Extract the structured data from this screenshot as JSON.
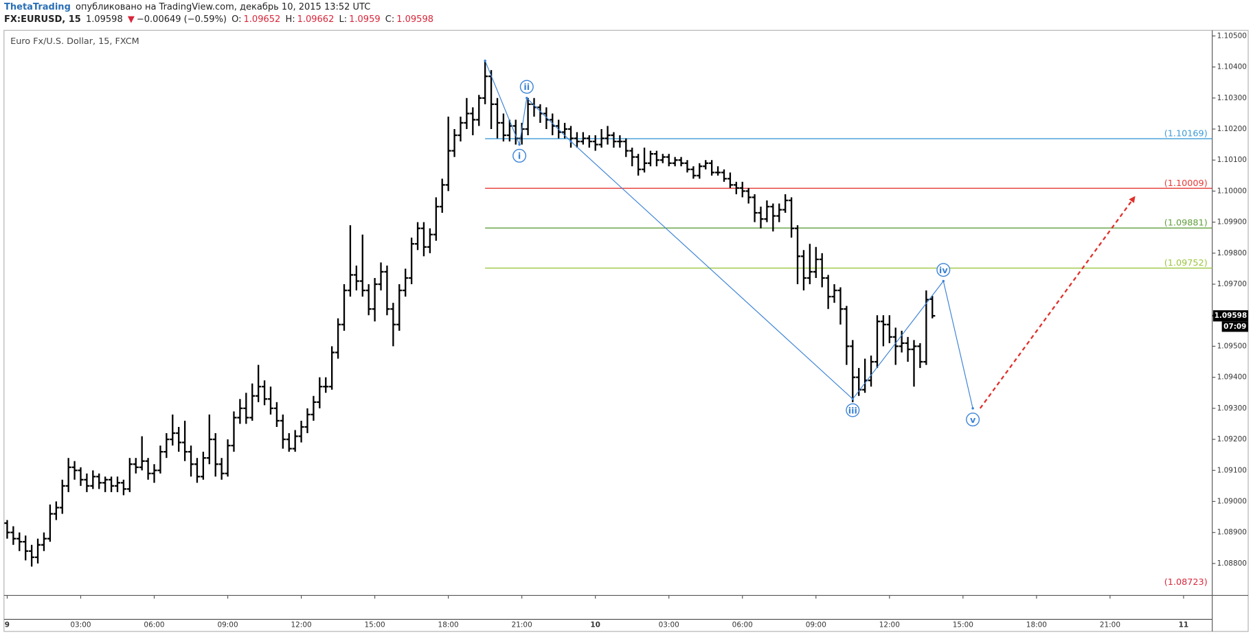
{
  "header": {
    "author": "ThetaTrading",
    "published": " опубликовано на TradingView.com, декабрь 10, 2015 13:52 UTC",
    "symbol": "FX:EURUSD, 15",
    "arrow": "▼",
    "change": "−0.00649 (−0.59%)",
    "open_label": "O:",
    "high_label": "H:",
    "low_label": "L:",
    "close_label": "C:"
  },
  "chart_data": {
    "type": "ohlc",
    "title": "Euro Fx/U.S. Dollar, 15, FXCM",
    "color": "#000000",
    "xlim": [
      -0.13,
      49.17
    ],
    "ylim": [
      1.08697,
      1.10518
    ],
    "xticks": [
      {
        "value": 0,
        "label": "9"
      },
      {
        "value": 3,
        "label": "03:00"
      },
      {
        "value": 6,
        "label": "06:00"
      },
      {
        "value": 9,
        "label": "09:00"
      },
      {
        "value": 12,
        "label": "12:00"
      },
      {
        "value": 15,
        "label": "15:00"
      },
      {
        "value": 18,
        "label": "18:00"
      },
      {
        "value": 21,
        "label": "21:00"
      },
      {
        "value": 24,
        "label": "10"
      },
      {
        "value": 27,
        "label": "03:00"
      },
      {
        "value": 30,
        "label": "06:00"
      },
      {
        "value": 33,
        "label": "09:00"
      },
      {
        "value": 36,
        "label": "12:00"
      },
      {
        "value": 39,
        "label": "15:00"
      },
      {
        "value": 42,
        "label": "18:00"
      },
      {
        "value": 45,
        "label": "21:00"
      },
      {
        "value": 48,
        "label": "11"
      }
    ],
    "yticks": [
      {
        "value": 1.088,
        "label": "1.08800"
      },
      {
        "value": 1.089,
        "label": "1.08900"
      },
      {
        "value": 1.09,
        "label": "1.09000"
      },
      {
        "value": 1.091,
        "label": "1.09100"
      },
      {
        "value": 1.092,
        "label": "1.09200"
      },
      {
        "value": 1.093,
        "label": "1.09300"
      },
      {
        "value": 1.094,
        "label": "1.09400"
      },
      {
        "value": 1.095,
        "label": "1.09500"
      },
      {
        "value": 1.096,
        "label": "1.09600"
      },
      {
        "value": 1.097,
        "label": "1.09700"
      },
      {
        "value": 1.098,
        "label": "1.09800"
      },
      {
        "value": 1.099,
        "label": "1.09900"
      },
      {
        "value": 1.1,
        "label": "1.10000"
      },
      {
        "value": 1.101,
        "label": "1.10100"
      },
      {
        "value": 1.102,
        "label": "1.10200"
      },
      {
        "value": 1.103,
        "label": "1.10300"
      },
      {
        "value": 1.104,
        "label": "1.10400"
      },
      {
        "value": 1.105,
        "label": "1.10500"
      }
    ],
    "x": [
      0,
      0.25,
      0.5,
      0.75,
      1,
      1.25,
      1.5,
      1.75,
      2,
      2.25,
      2.5,
      2.75,
      3,
      3.25,
      3.5,
      3.75,
      4,
      4.25,
      4.5,
      4.75,
      5,
      5.25,
      5.5,
      5.75,
      6,
      6.25,
      6.5,
      6.75,
      7,
      7.25,
      7.5,
      7.75,
      8,
      8.25,
      8.5,
      8.75,
      9,
      9.25,
      9.5,
      9.75,
      10,
      10.25,
      10.5,
      10.75,
      11,
      11.25,
      11.5,
      11.75,
      12,
      12.25,
      12.5,
      12.75,
      13,
      13.25,
      13.5,
      13.75,
      14,
      14.25,
      14.5,
      14.75,
      15,
      15.25,
      15.5,
      15.75,
      16,
      16.25,
      16.5,
      16.75,
      17,
      17.25,
      17.5,
      17.75,
      18,
      18.25,
      18.5,
      18.75,
      19,
      19.25,
      19.5,
      19.75,
      20,
      20.25,
      20.5,
      20.75,
      21,
      21.25,
      21.5,
      21.75,
      22,
      22.25,
      22.5,
      22.75,
      23,
      23.25,
      23.5,
      23.75,
      24,
      24.25,
      24.5,
      24.75,
      25,
      25.25,
      25.5,
      25.75,
      26,
      26.25,
      26.5,
      26.75,
      27,
      27.25,
      27.5,
      27.75,
      28,
      28.25,
      28.5,
      28.75,
      29,
      29.25,
      29.5,
      29.75,
      30,
      30.25,
      30.5,
      30.75,
      31,
      31.25,
      31.5,
      31.75,
      32,
      32.25,
      32.5,
      32.75,
      33,
      33.25,
      33.5,
      33.75,
      34,
      34.25,
      34.5,
      34.75,
      35,
      35.25,
      35.5,
      35.75,
      36,
      36.25,
      36.5,
      36.75,
      37,
      37.25,
      37.5,
      37.75
    ],
    "ohlc": [
      [
        1.0893,
        1.0894,
        1.0888,
        1.089
      ],
      [
        1.089,
        1.0892,
        1.0886,
        1.0888
      ],
      [
        1.0888,
        1.089,
        1.0884,
        1.0887
      ],
      [
        1.0887,
        1.0889,
        1.0881,
        1.0884
      ],
      [
        1.0884,
        1.0886,
        1.0879,
        1.0882
      ],
      [
        1.0882,
        1.0888,
        1.088,
        1.0886
      ],
      [
        1.0886,
        1.089,
        1.0884,
        1.0888
      ],
      [
        1.0888,
        1.0899,
        1.0887,
        1.0896
      ],
      [
        1.0896,
        1.09,
        1.0894,
        1.0898
      ],
      [
        1.0898,
        1.0907,
        1.0896,
        1.0905
      ],
      [
        1.0905,
        1.0914,
        1.0903,
        1.0911
      ],
      [
        1.0911,
        1.0913,
        1.0907,
        1.091
      ],
      [
        1.091,
        1.0911,
        1.0905,
        1.0907
      ],
      [
        1.0907,
        1.0909,
        1.0903,
        1.0905
      ],
      [
        1.0905,
        1.091,
        1.0904,
        1.0908
      ],
      [
        1.0908,
        1.0909,
        1.0904,
        1.0906
      ],
      [
        1.0906,
        1.0908,
        1.0903,
        1.0907
      ],
      [
        1.0907,
        1.0908,
        1.0903,
        1.0905
      ],
      [
        1.0905,
        1.0908,
        1.0903,
        1.0906
      ],
      [
        1.0906,
        1.0907,
        1.0902,
        1.0904
      ],
      [
        1.0904,
        1.0914,
        1.0903,
        1.0912
      ],
      [
        1.0912,
        1.0914,
        1.0909,
        1.0911
      ],
      [
        1.0911,
        1.0921,
        1.091,
        1.0913
      ],
      [
        1.0913,
        1.0914,
        1.0907,
        1.0909
      ],
      [
        1.0909,
        1.0912,
        1.0906,
        1.091
      ],
      [
        1.091,
        1.0918,
        1.0909,
        1.0916
      ],
      [
        1.0916,
        1.0922,
        1.0914,
        1.092
      ],
      [
        1.092,
        1.0928,
        1.0918,
        1.0922
      ],
      [
        1.0922,
        1.0924,
        1.0916,
        1.0919
      ],
      [
        1.0919,
        1.0926,
        1.0913,
        1.0916
      ],
      [
        1.0916,
        1.0918,
        1.0908,
        1.0912
      ],
      [
        1.0912,
        1.0914,
        1.0906,
        1.0908
      ],
      [
        1.0908,
        1.0916,
        1.0907,
        1.0914
      ],
      [
        1.0914,
        1.0928,
        1.0912,
        1.092
      ],
      [
        1.092,
        1.0922,
        1.0908,
        1.0912
      ],
      [
        1.0912,
        1.0914,
        1.0907,
        1.0909
      ],
      [
        1.0909,
        1.092,
        1.0908,
        1.0918
      ],
      [
        1.0918,
        1.0929,
        1.0916,
        1.0927
      ],
      [
        1.0927,
        1.0933,
        1.0925,
        1.093
      ],
      [
        1.093,
        1.0935,
        1.0925,
        1.0927
      ],
      [
        1.0927,
        1.0938,
        1.0926,
        1.0934
      ],
      [
        1.0934,
        1.0944,
        1.0932,
        1.0937
      ],
      [
        1.0937,
        1.0939,
        1.0931,
        1.0933
      ],
      [
        1.0933,
        1.0937,
        1.0928,
        1.093
      ],
      [
        1.093,
        1.0932,
        1.0924,
        1.0926
      ],
      [
        1.0926,
        1.0928,
        1.0917,
        1.092
      ],
      [
        1.092,
        1.0922,
        1.0916,
        1.0917
      ],
      [
        1.0917,
        1.0923,
        1.0916,
        1.0921
      ],
      [
        1.0921,
        1.0926,
        1.0919,
        1.0924
      ],
      [
        1.0924,
        1.093,
        1.0922,
        1.0928
      ],
      [
        1.0928,
        1.0934,
        1.0926,
        1.0932
      ],
      [
        1.0932,
        1.094,
        1.093,
        1.0937
      ],
      [
        1.0937,
        1.094,
        1.0935,
        1.0937
      ],
      [
        1.0937,
        1.095,
        1.0936,
        1.0948
      ],
      [
        1.0948,
        1.0959,
        1.0946,
        1.0957
      ],
      [
        1.0957,
        1.097,
        1.0955,
        1.0968
      ],
      [
        1.0968,
        1.0989,
        1.0966,
        1.0973
      ],
      [
        1.0973,
        1.0976,
        1.0968,
        1.0971
      ],
      [
        1.0971,
        1.0986,
        1.0966,
        1.0968
      ],
      [
        1.0968,
        1.097,
        1.096,
        1.0962
      ],
      [
        1.0962,
        1.0972,
        1.0958,
        1.097
      ],
      [
        1.097,
        1.0977,
        1.0968,
        1.0974
      ],
      [
        1.0974,
        1.0976,
        1.096,
        1.0962
      ],
      [
        1.0962,
        1.0964,
        1.095,
        1.0957
      ],
      [
        1.0957,
        1.097,
        1.0955,
        1.0968
      ],
      [
        1.0968,
        1.0975,
        1.0966,
        1.0972
      ],
      [
        1.0972,
        1.0985,
        1.097,
        1.0983
      ],
      [
        1.0983,
        1.099,
        1.0981,
        1.0988
      ],
      [
        1.0988,
        1.099,
        1.0979,
        1.0982
      ],
      [
        1.0982,
        1.0988,
        1.098,
        1.0986
      ],
      [
        1.0986,
        1.0998,
        1.0984,
        1.0995
      ],
      [
        1.0995,
        1.1004,
        1.0993,
        1.1002
      ],
      [
        1.1002,
        1.1024,
        1.1,
        1.1013
      ],
      [
        1.1013,
        1.102,
        1.1011,
        1.1018
      ],
      [
        1.1018,
        1.1024,
        1.1016,
        1.1022
      ],
      [
        1.1022,
        1.103,
        1.102,
        1.1025
      ],
      [
        1.1025,
        1.1027,
        1.1018,
        1.1023
      ],
      [
        1.1023,
        1.1031,
        1.1021,
        1.103
      ],
      [
        1.103,
        1.1042,
        1.1028,
        1.1037
      ],
      [
        1.1037,
        1.1039,
        1.102,
        1.1028
      ],
      [
        1.1028,
        1.103,
        1.1017,
        1.1022
      ],
      [
        1.1022,
        1.1025,
        1.1016,
        1.1018
      ],
      [
        1.1018,
        1.1023,
        1.1016,
        1.1021
      ],
      [
        1.1021,
        1.1023,
        1.1015,
        1.1017
      ],
      [
        1.1017,
        1.1022,
        1.1015,
        1.102
      ],
      [
        1.102,
        1.103,
        1.1018,
        1.1028
      ],
      [
        1.1028,
        1.103,
        1.1024,
        1.1027
      ],
      [
        1.1027,
        1.1028,
        1.1022,
        1.1025
      ],
      [
        1.1025,
        1.1027,
        1.102,
        1.1023
      ],
      [
        1.1023,
        1.1025,
        1.1018,
        1.1021
      ],
      [
        1.1021,
        1.1023,
        1.1017,
        1.1019
      ],
      [
        1.1019,
        1.1022,
        1.1017,
        1.102
      ],
      [
        1.102,
        1.1021,
        1.1014,
        1.1017
      ],
      [
        1.1017,
        1.1019,
        1.1014,
        1.1016
      ],
      [
        1.1016,
        1.1019,
        1.1015,
        1.1017
      ],
      [
        1.1017,
        1.1018,
        1.1014,
        1.1016
      ],
      [
        1.1016,
        1.1018,
        1.1013,
        1.1015
      ],
      [
        1.1015,
        1.102,
        1.1014,
        1.1017
      ],
      [
        1.1017,
        1.1021,
        1.1015,
        1.1018
      ],
      [
        1.1018,
        1.1019,
        1.1014,
        1.1016
      ],
      [
        1.1016,
        1.1018,
        1.1014,
        1.1016
      ],
      [
        1.1016,
        1.1017,
        1.1011,
        1.1013
      ],
      [
        1.1013,
        1.1014,
        1.1008,
        1.1011
      ],
      [
        1.1011,
        1.1012,
        1.1005,
        1.1007
      ],
      [
        1.1007,
        1.1014,
        1.1006,
        1.1009
      ],
      [
        1.1009,
        1.1013,
        1.1008,
        1.1012
      ],
      [
        1.1012,
        1.1013,
        1.1008,
        1.101
      ],
      [
        1.101,
        1.1012,
        1.1009,
        1.1011
      ],
      [
        1.1011,
        1.1012,
        1.1008,
        1.1009
      ],
      [
        1.1009,
        1.1011,
        1.1008,
        1.101
      ],
      [
        1.101,
        1.1011,
        1.1008,
        1.1009
      ],
      [
        1.1009,
        1.101,
        1.1006,
        1.1007
      ],
      [
        1.1007,
        1.1008,
        1.1004,
        1.1005
      ],
      [
        1.1005,
        1.1009,
        1.1004,
        1.1008
      ],
      [
        1.1008,
        1.101,
        1.1007,
        1.1009
      ],
      [
        1.1009,
        1.101,
        1.1005,
        1.1006
      ],
      [
        1.1006,
        1.1008,
        1.1005,
        1.1006
      ],
      [
        1.1006,
        1.1007,
        1.1003,
        1.1004
      ],
      [
        1.1004,
        1.1006,
        1.1001,
        1.1002
      ],
      [
        1.1002,
        1.1003,
        1.0999,
        1.1001
      ],
      [
        1.1001,
        1.1003,
        1.0998,
        1.1
      ],
      [
        1.1,
        1.1001,
        1.0996,
        1.0998
      ],
      [
        1.0998,
        1.0999,
        1.099,
        1.0993
      ],
      [
        1.0993,
        1.0995,
        1.0988,
        1.0991
      ],
      [
        1.0991,
        1.0997,
        1.099,
        1.0995
      ],
      [
        1.0995,
        1.0996,
        1.0987,
        1.0992
      ],
      [
        1.0992,
        1.0996,
        1.099,
        1.0994
      ],
      [
        1.0994,
        1.0999,
        1.0993,
        1.0997
      ],
      [
        1.0997,
        1.0998,
        1.0985,
        1.0988
      ],
      [
        1.0988,
        1.0989,
        1.097,
        1.0979
      ],
      [
        1.0979,
        1.0981,
        1.0968,
        1.0972
      ],
      [
        1.0972,
        1.0983,
        1.097,
        1.0974
      ],
      [
        1.0974,
        1.0982,
        1.0972,
        1.0978
      ],
      [
        1.0978,
        1.098,
        1.0969,
        1.0972
      ],
      [
        1.0972,
        1.0973,
        1.0962,
        1.0966
      ],
      [
        1.0966,
        1.097,
        1.0964,
        1.0968
      ],
      [
        1.0968,
        1.0969,
        1.0957,
        1.0962
      ],
      [
        1.0962,
        1.0963,
        1.0944,
        1.095
      ],
      [
        1.095,
        1.0952,
        1.0932,
        1.094
      ],
      [
        1.094,
        1.0943,
        1.0934,
        1.0936
      ],
      [
        1.0936,
        1.0946,
        1.0935,
        1.0939
      ],
      [
        1.0939,
        1.0947,
        1.0937,
        1.0945
      ],
      [
        1.0945,
        1.096,
        1.0943,
        1.0958
      ],
      [
        1.0958,
        1.096,
        1.095,
        1.0957
      ],
      [
        1.0957,
        1.096,
        1.0951,
        1.0953
      ],
      [
        1.0953,
        1.0956,
        1.0944,
        1.095
      ],
      [
        1.095,
        1.0955,
        1.0948,
        1.0951
      ],
      [
        1.0951,
        1.0953,
        1.0945,
        1.0949
      ],
      [
        1.0949,
        1.0952,
        1.0937,
        1.095
      ],
      [
        1.095,
        1.0951,
        1.0943,
        1.0945
      ],
      [
        1.0945,
        1.0968,
        1.0944,
        1.0965
      ],
      [
        1.09652,
        1.09662,
        1.0959,
        1.09598
      ]
    ],
    "countdown": "07:09",
    "levels": [
      {
        "value": 1.10169,
        "label": "(1.10169)",
        "color": "#3b9ad6",
        "line": true
      },
      {
        "value": 1.10009,
        "label": "(1.10009)",
        "color": "#e53935",
        "line": true
      },
      {
        "value": 1.09881,
        "label": "(1.09881)",
        "color": "#5e9e3a",
        "line": true
      },
      {
        "value": 1.09752,
        "label": "(1.09752)",
        "color": "#9bc53d",
        "line": true
      },
      {
        "value": 1.08723,
        "label": "(1.08723)",
        "color": "#d8263a",
        "line": false
      }
    ],
    "levels_start": 19.5,
    "wave": {
      "color": "#3b82d6",
      "x": [
        19.5,
        20.9,
        21.2,
        23.0,
        34.5,
        38.2,
        39.4
      ],
      "y": [
        1.1042,
        1.1015,
        1.103,
        1.1016,
        1.0933,
        1.0971,
        1.093
      ]
    },
    "wave_labels": [
      {
        "label": "i",
        "x": 20.9,
        "y": 1.1015,
        "placement": "below"
      },
      {
        "label": "ii",
        "x": 21.2,
        "y": 1.103,
        "placement": "above"
      },
      {
        "label": "iii",
        "x": 34.5,
        "y": 1.0933,
        "placement": "below"
      },
      {
        "label": "iv",
        "x": 38.2,
        "y": 1.0971,
        "placement": "above"
      },
      {
        "label": "v",
        "x": 39.4,
        "y": 1.093,
        "placement": "below"
      }
    ],
    "projection": {
      "color": "#e0302a",
      "x": [
        39.7,
        45.99
      ],
      "y": [
        1.093,
        1.0998
      ]
    }
  }
}
